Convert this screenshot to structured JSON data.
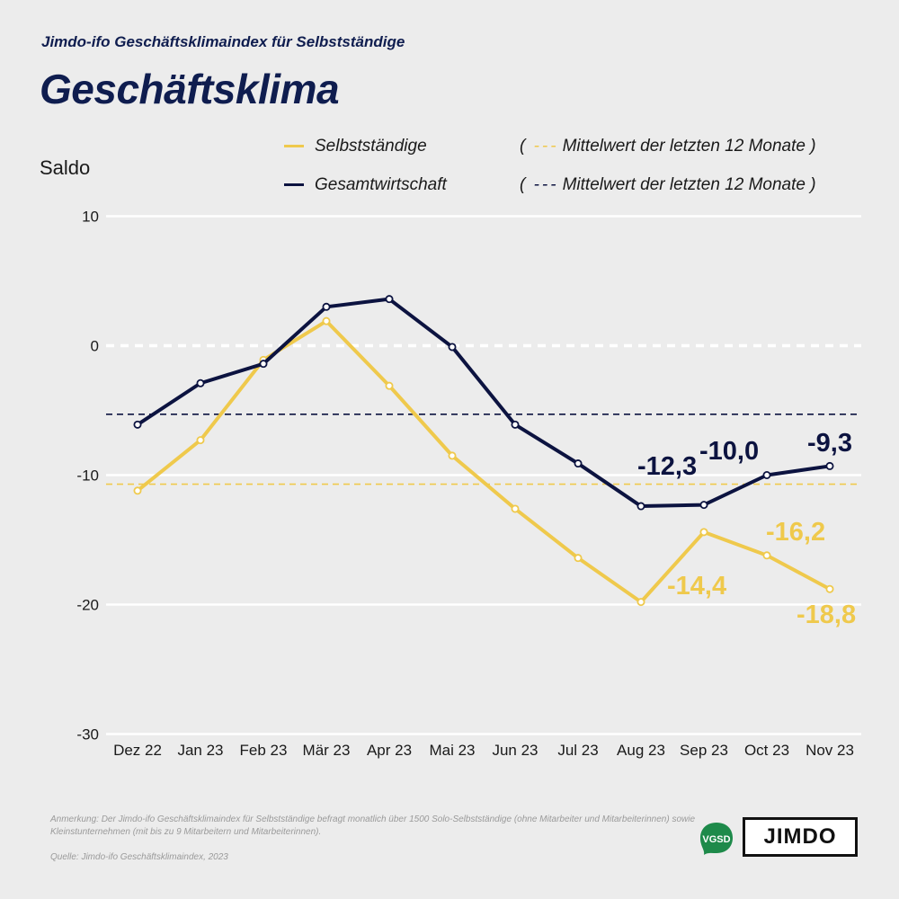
{
  "header": {
    "subtitle": "Jimdo-ifo Geschäftsklimaindex für Selbstständige",
    "title": "Geschäftsklima"
  },
  "ylabel": "Saldo",
  "legend": {
    "series1": "Selbstständige",
    "series2": "Gesamtwirtschaft",
    "mean1": "Mittelwert der letzten 12 Monate",
    "mean2": "Mittelwert der letzten 12 Monate"
  },
  "colors": {
    "selbststaendige": "#efc94c",
    "gesamtwirtschaft": "#0c1340",
    "background": "#ececec",
    "grid": "#ffffff"
  },
  "chart_data": {
    "type": "line",
    "x": [
      "Dez 22",
      "Jan 23",
      "Feb 23",
      "Mär 23",
      "Apr 23",
      "Mai 23",
      "Jun 23",
      "Jul 23",
      "Aug 23",
      "Sep 23",
      "Oct 23",
      "Nov 23"
    ],
    "ylim": [
      -30,
      10
    ],
    "yticks": [
      10,
      0,
      -10,
      -20,
      -30
    ],
    "ylabel": "Saldo",
    "series": [
      {
        "name": "Selbstständige",
        "color": "#efc94c",
        "values": [
          -11.2,
          -7.3,
          -1.1,
          1.9,
          -3.1,
          -8.5,
          -12.6,
          -16.4,
          -19.8,
          -14.4,
          -16.2,
          -18.8
        ],
        "mean": -10.7,
        "labels": {
          "9": "-14,4",
          "10": "-16,2",
          "11": "-18,8"
        }
      },
      {
        "name": "Gesamtwirtschaft",
        "color": "#0c1340",
        "values": [
          -6.1,
          -2.9,
          -1.4,
          3.0,
          3.6,
          -0.1,
          -6.1,
          -9.1,
          -12.4,
          -12.3,
          -10.0,
          -9.3
        ],
        "mean": -5.3,
        "labels": {
          "9": "-12,3",
          "10": "-10,0",
          "11": "-9,3"
        }
      }
    ],
    "zero_line": "dashed white",
    "grid": true
  },
  "footer": {
    "note": "Anmerkung: Der Jimdo-ifo Geschäftsklimaindex für Selbstständige befragt monatlich über 1500 Solo-Selbstständige (ohne Mitarbeiter und Mitarbeiterinnen) sowie Kleinstunternehmen (mit bis zu 9 Mitarbeitern und Mitarbeiterinnen).",
    "source": "Quelle: Jimdo-ifo Geschäftsklimaindex, 2023",
    "logo_vgsd": "VGSD",
    "logo_jimdo": "JIMDO"
  }
}
